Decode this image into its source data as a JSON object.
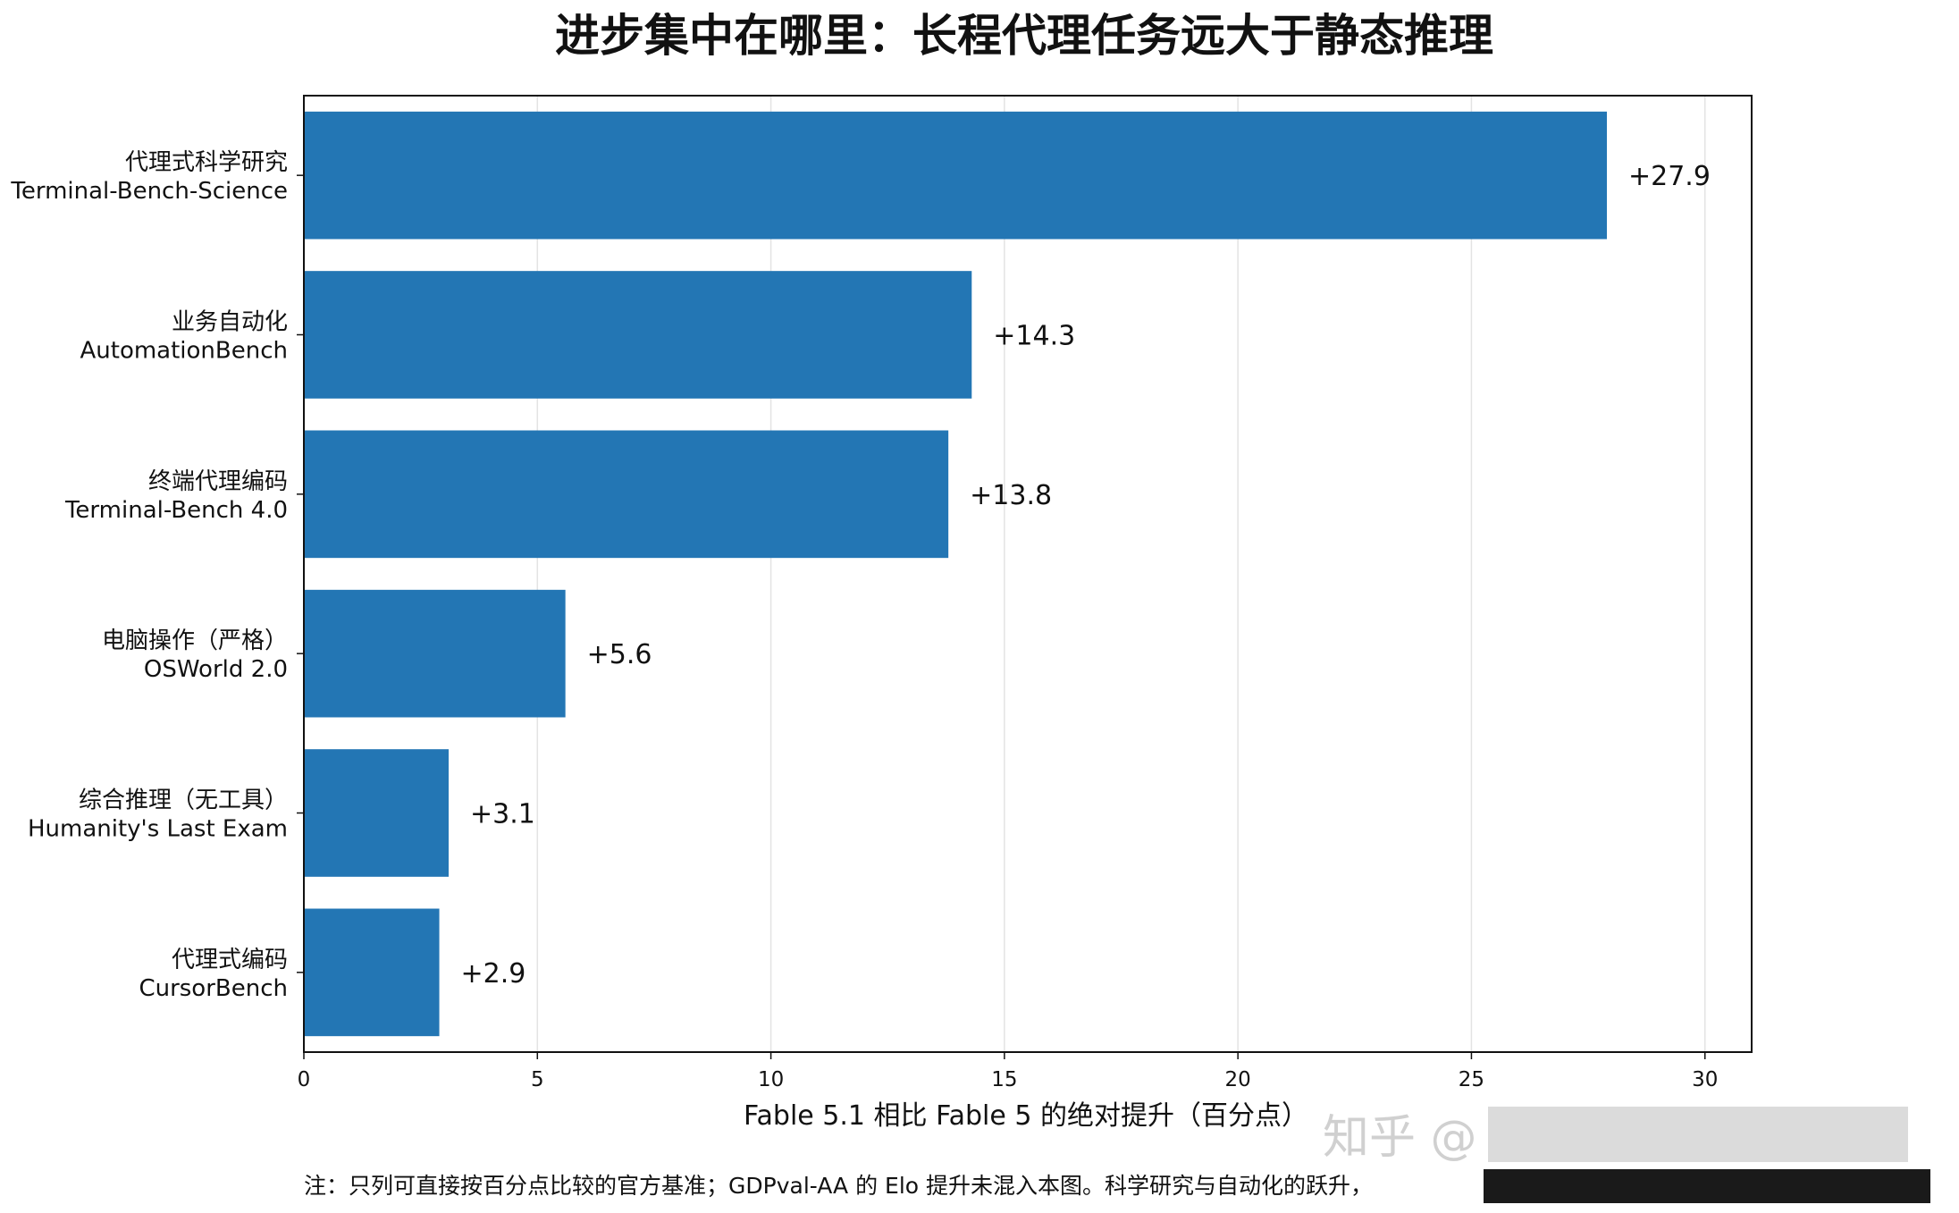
{
  "chart_data": {
    "type": "bar",
    "orientation": "horizontal",
    "title": "进步集中在哪里：长程代理任务远大于静态推理",
    "xlabel": "Fable 5.1 相比 Fable 5 的绝对提升（百分点）",
    "xlim": [
      0,
      31
    ],
    "xticks": [
      "0",
      "5",
      "10",
      "15",
      "20",
      "25",
      "30"
    ],
    "grid": "x",
    "bar_color": "#2376b4",
    "categories": [
      {
        "cn": "代理式科学研究",
        "en": "Terminal-Bench-Science"
      },
      {
        "cn": "业务自动化",
        "en": "AutomationBench"
      },
      {
        "cn": "终端代理编码",
        "en": "Terminal-Bench 4.0"
      },
      {
        "cn": "电脑操作（严格）",
        "en": "OSWorld 2.0"
      },
      {
        "cn": "综合推理（无工具）",
        "en": "Humanity's Last Exam"
      },
      {
        "cn": "代理式编码",
        "en": "CursorBench"
      }
    ],
    "values": [
      27.9,
      14.3,
      13.8,
      5.6,
      3.1,
      2.9
    ],
    "value_labels": [
      "+27.9",
      "+14.3",
      "+13.8",
      "+5.6",
      "+3.1",
      "+2.9"
    ]
  },
  "note": "注：只列可直接按百分点比较的官方基准；GDPval-AA 的 Elo 提升未混入本图。科学研究与自动化的跃升，",
  "watermark": "知乎 @"
}
